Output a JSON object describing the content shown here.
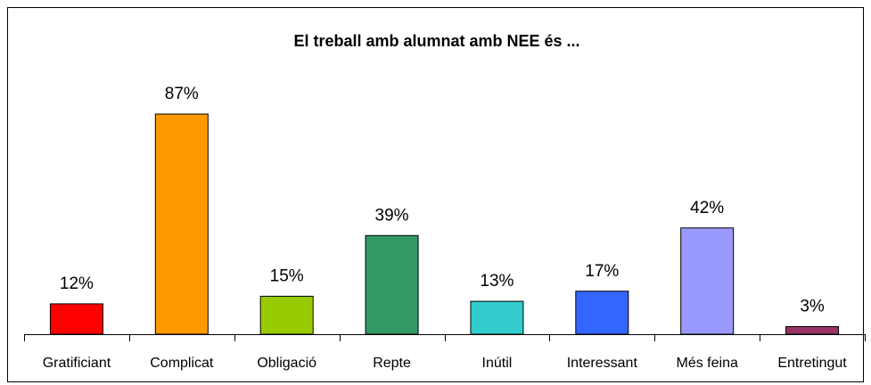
{
  "chart_data": {
    "type": "bar",
    "title": "El treball amb alumnat amb NEE és ...",
    "categories": [
      "Gratificiant",
      "Complicat",
      "Obligació",
      "Repte",
      "Inútil",
      "Interessant",
      "Més feina",
      "Entretingut"
    ],
    "values": [
      12,
      87,
      15,
      39,
      13,
      17,
      42,
      3
    ],
    "value_labels": [
      "12%",
      "87%",
      "15%",
      "39%",
      "13%",
      "17%",
      "42%",
      "3%"
    ],
    "colors": [
      "#ff0000",
      "#ff9900",
      "#99cc00",
      "#339966",
      "#33cccc",
      "#3366ff",
      "#9999ff",
      "#993366"
    ]
  }
}
